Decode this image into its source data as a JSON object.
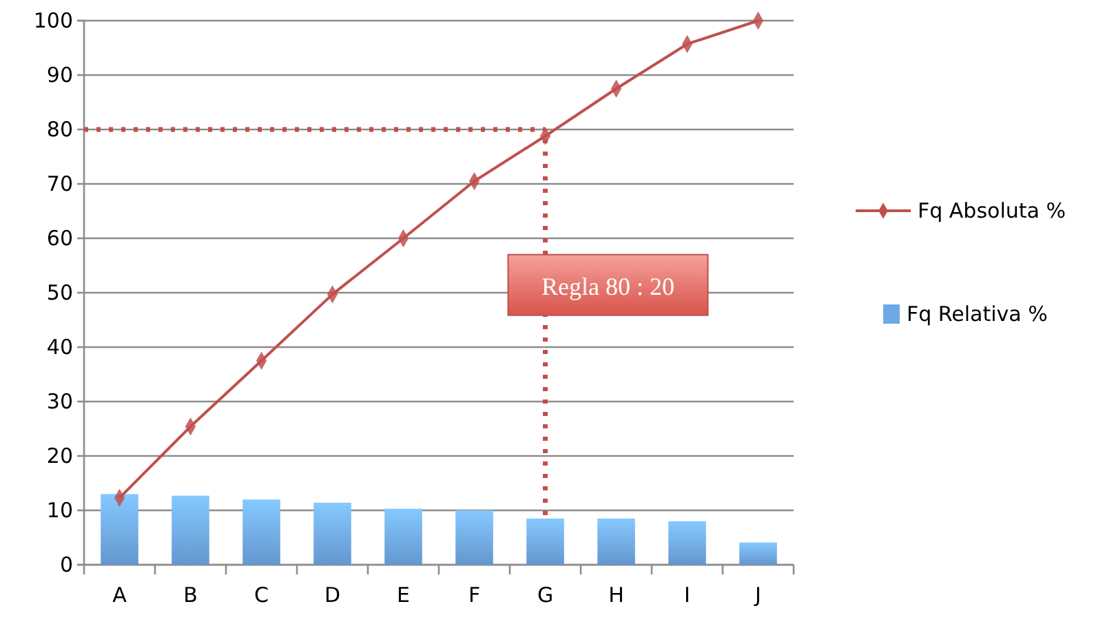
{
  "chart_data": {
    "type": "bar",
    "categories": [
      "A",
      "B",
      "C",
      "D",
      "E",
      "F",
      "G",
      "H",
      "I",
      "J"
    ],
    "series": [
      {
        "name": "Fq Absoluta %",
        "type": "line",
        "color": "#c0504d",
        "values": [
          12.3,
          25.4,
          37.5,
          49.7,
          60.0,
          70.5,
          78.8,
          87.5,
          95.7,
          100
        ]
      },
      {
        "name": "Fq Relativa %",
        "color": "#6fa8e6",
        "values": [
          13.0,
          12.7,
          12.0,
          11.4,
          10.3,
          10.0,
          8.5,
          8.5,
          8.0,
          4.1
        ]
      }
    ],
    "ylim": [
      0,
      100
    ],
    "yticks": [
      0,
      10,
      20,
      30,
      40,
      50,
      60,
      70,
      80,
      90,
      100
    ],
    "grid": "y",
    "legend": "right",
    "marker": "diamond",
    "ref_lines": [
      {
        "axis": "y",
        "value": 80,
        "color": "#c0504d",
        "line_style": "dotted"
      },
      {
        "axis": "x",
        "value": "G",
        "color": "#c0504d",
        "line_style": "dotted"
      }
    ],
    "annotations": [
      "Regla 80 : 20"
    ]
  }
}
